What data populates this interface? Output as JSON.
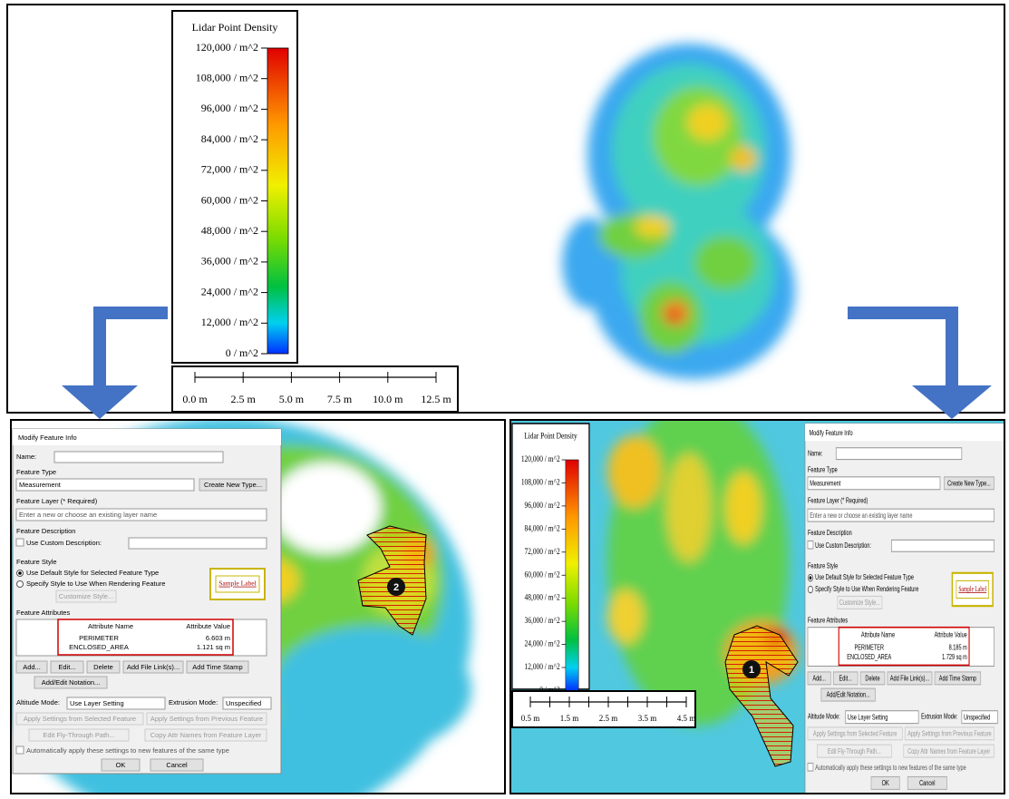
{
  "legend": {
    "title": "Lidar Point Density",
    "labels": [
      "120,000 / m^2",
      "108,000 / m^2",
      "96,000 / m^2",
      "84,000 / m^2",
      "72,000 / m^2",
      "60,000 / m^2",
      "48,000 / m^2",
      "36,000 / m^2",
      "24,000 / m^2",
      "12,000 / m^2",
      "0 / m^2"
    ]
  },
  "top_scale": [
    "0.0 m",
    "2.5 m",
    "5.0 m",
    "7.5 m",
    "10.0 m",
    "12.5 m"
  ],
  "right_scale": [
    "0.5 m",
    "1.5 m",
    "2.5 m",
    "3.5 m",
    "4.5 m"
  ],
  "dialog": {
    "title": "Modify Feature Info",
    "name_label": "Name:",
    "feature_type_label": "Feature Type",
    "feature_type_value": "Measurement",
    "create_new_type": "Create New Type...",
    "feature_layer_label": "Feature Layer (* Required)",
    "feature_layer_placeholder": "Enter a new or choose an existing layer name",
    "feature_description_label": "Feature Description",
    "use_custom_description": "Use Custom Description:",
    "feature_style_label": "Feature Style",
    "use_default_style": "Use Default Style for Selected Feature Type",
    "specify_style": "Specify Style to Use When Rendering Feature",
    "customize_style": "Customize Style...",
    "sample_label": "Sample Label",
    "feature_attributes_label": "Feature Attributes",
    "attribute_name_header": "Attribute Name",
    "attribute_value_header": "Attribute Value",
    "perimeter_name": "PERIMETER",
    "area_name": "ENCLOSED_AREA",
    "add": "Add...",
    "edit": "Edit...",
    "delete": "Delete",
    "add_file_link": "Add File Link(s)...",
    "add_time_stamp": "Add Time Stamp",
    "add_edit_notation": "Add/Edit Notation...",
    "altitude_mode_label": "Altitude Mode:",
    "altitude_mode_value": "Use Layer Setting",
    "extrusion_mode_label": "Extrusion Mode:",
    "extrusion_mode_value": "Unspecified",
    "apply_selected": "Apply Settings from Selected Feature",
    "apply_previous": "Apply Settings from Previous Feature",
    "edit_fly_through": "Edit Fly-Through Path...",
    "copy_attr_names": "Copy Attr Names from Feature Layer",
    "auto_apply": "Automatically apply these settings to new features of the same type",
    "ok": "OK",
    "cancel": "Cancel"
  },
  "left_panel": {
    "marker": "2",
    "perimeter": "6.603 m",
    "enclosed_area": "1.121 sq m"
  },
  "right_panel": {
    "marker": "1",
    "perimeter": "8.185 m",
    "enclosed_area": "1.729 sq m"
  }
}
